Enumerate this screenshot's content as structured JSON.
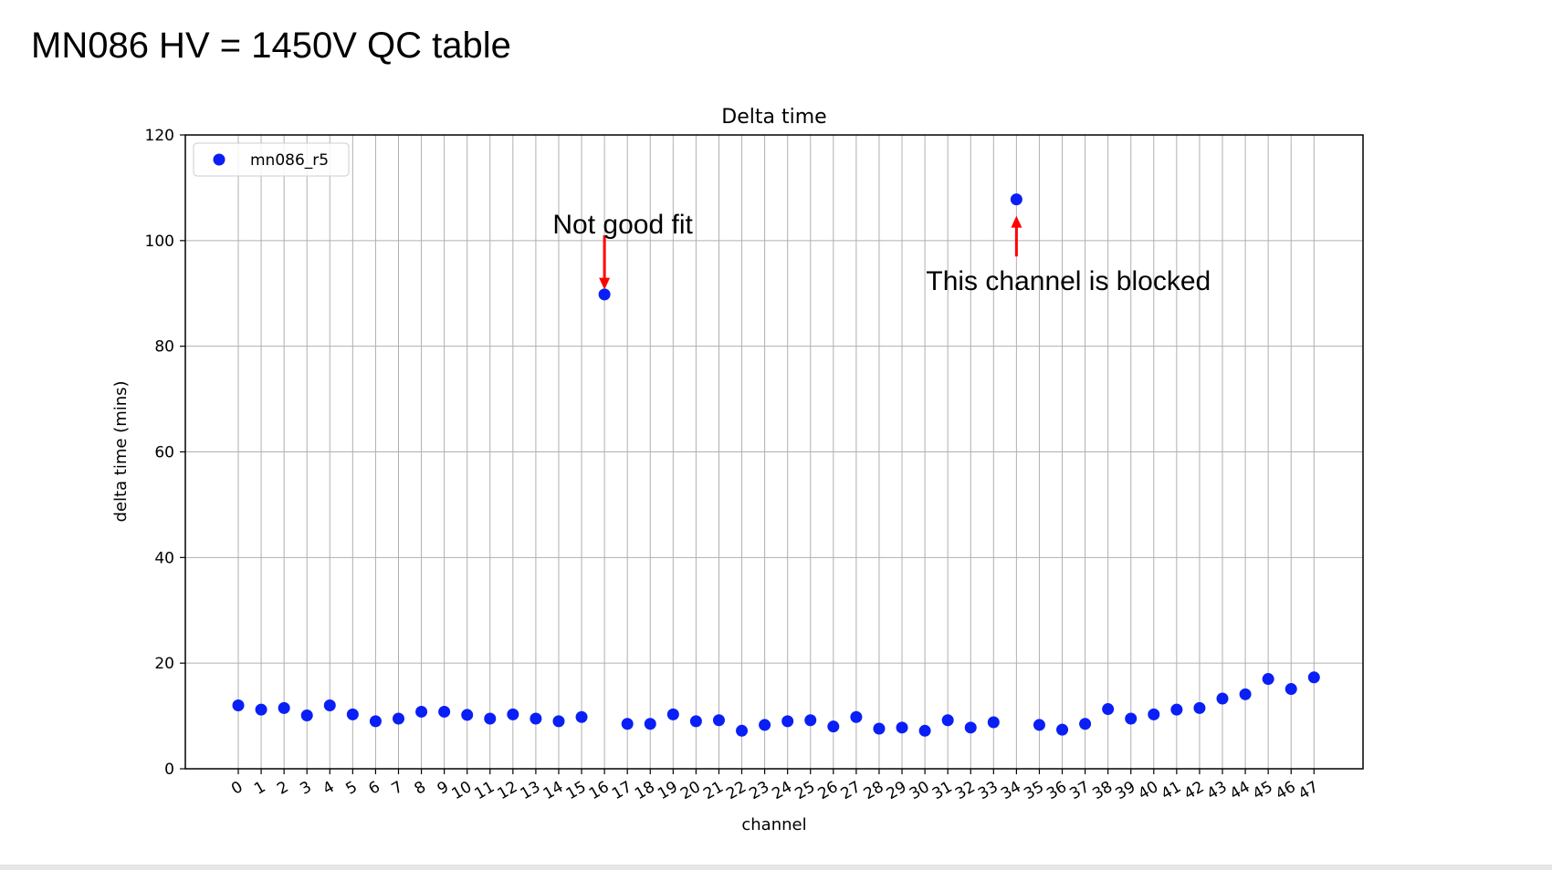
{
  "slide": {
    "title": "MN086 HV = 1450V QC table"
  },
  "chart_data": {
    "type": "scatter",
    "title": "Delta time",
    "xlabel": "channel",
    "ylabel": "delta time (mins)",
    "ylim": [
      0,
      120
    ],
    "yticks": [
      0,
      20,
      40,
      60,
      80,
      100,
      120
    ],
    "grid": true,
    "legend_position": "top-left",
    "categories": [
      "0",
      "1",
      "2",
      "3",
      "4",
      "5",
      "6",
      "7",
      "8",
      "9",
      "10",
      "11",
      "12",
      "13",
      "14",
      "15",
      "16",
      "17",
      "18",
      "19",
      "20",
      "21",
      "22",
      "23",
      "24",
      "25",
      "26",
      "27",
      "28",
      "29",
      "30",
      "31",
      "32",
      "33",
      "34",
      "35",
      "36",
      "37",
      "38",
      "39",
      "40",
      "41",
      "42",
      "43",
      "44",
      "45",
      "46",
      "47"
    ],
    "series": [
      {
        "name": "mn086_r5",
        "color": "#0a1ff5",
        "values": [
          12.0,
          11.2,
          11.5,
          10.1,
          12.0,
          10.3,
          9.0,
          9.5,
          10.8,
          10.8,
          10.2,
          9.5,
          10.3,
          9.5,
          9.0,
          9.8,
          89.8,
          8.5,
          8.5,
          10.3,
          9.0,
          9.2,
          7.2,
          8.3,
          9.0,
          9.2,
          8.0,
          9.8,
          7.6,
          7.8,
          7.2,
          9.2,
          7.8,
          8.8,
          107.8,
          8.3,
          7.4,
          8.5,
          11.3,
          9.5,
          10.3,
          11.2,
          11.5,
          13.3,
          14.1,
          17.0,
          15.1,
          17.3
        ]
      }
    ],
    "annotations": [
      {
        "text": "Not good fit",
        "channel": "16",
        "arrow_from_value": 101,
        "arrow_to_value": 91.4,
        "color": "#ff0000"
      },
      {
        "text": "This channel is blocked",
        "channel": "34",
        "arrow_from_value": 97,
        "arrow_to_value": 104,
        "color": "#ff0000"
      }
    ]
  }
}
